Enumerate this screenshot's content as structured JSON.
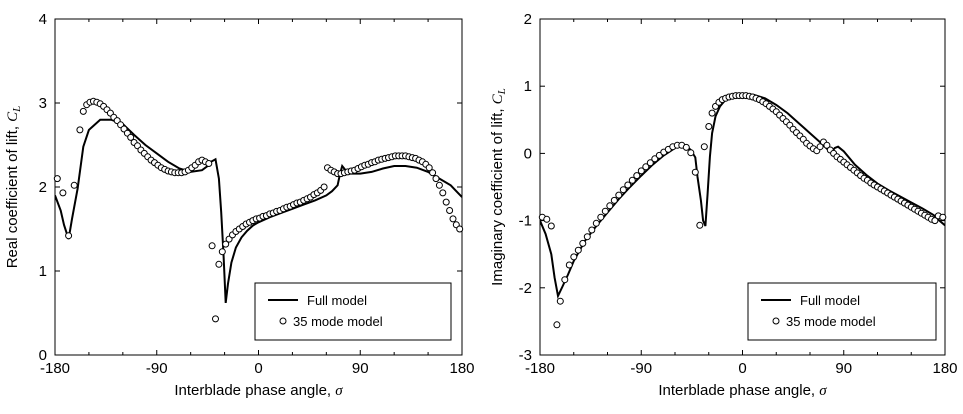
{
  "chart_data": [
    {
      "type": "line",
      "panel": "left",
      "xlabel": "Interblade phase angle,",
      "xlabel_symbol": "σ",
      "ylabel": "Real coefficient of lift,",
      "ylabel_symbol": "C",
      "ylabel_sub": "L",
      "xlim": [
        -180,
        180
      ],
      "ylim": [
        0,
        4
      ],
      "xticks": [
        "-180",
        "-90",
        "0",
        "90",
        "180"
      ],
      "yticks": [
        "0",
        "1",
        "2",
        "3",
        "4"
      ],
      "legend_position": "lower-right",
      "series": [
        {
          "name": "Full model",
          "style": "line",
          "x": [
            -180,
            -175,
            -172,
            -168,
            -165,
            -160,
            -155,
            -150,
            -140,
            -130,
            -120,
            -110,
            -100,
            -90,
            -80,
            -70,
            -60,
            -50,
            -45,
            -42,
            -38,
            -35,
            -33,
            -31,
            -29,
            -27,
            -24,
            -20,
            -15,
            -10,
            -5,
            0,
            10,
            20,
            30,
            40,
            50,
            60,
            65,
            70,
            72,
            74,
            77,
            80,
            90,
            100,
            110,
            120,
            130,
            140,
            150,
            160,
            170,
            175,
            180
          ],
          "y": [
            1.9,
            1.72,
            1.55,
            1.38,
            1.62,
            1.98,
            2.48,
            2.68,
            2.8,
            2.8,
            2.75,
            2.62,
            2.5,
            2.4,
            2.3,
            2.22,
            2.18,
            2.2,
            2.25,
            2.3,
            2.33,
            2.1,
            1.7,
            1.2,
            0.62,
            0.85,
            1.1,
            1.28,
            1.4,
            1.48,
            1.54,
            1.58,
            1.64,
            1.69,
            1.74,
            1.79,
            1.84,
            1.9,
            1.95,
            2.02,
            2.15,
            2.25,
            2.2,
            2.16,
            2.16,
            2.18,
            2.22,
            2.25,
            2.25,
            2.23,
            2.18,
            2.1,
            2.02,
            1.95,
            1.88
          ]
        },
        {
          "name": "35 mode model",
          "style": "markers",
          "x": [
            -178,
            -173,
            -168,
            -163,
            -158,
            -155,
            -152,
            -149,
            -146,
            -143,
            -140,
            -137,
            -134,
            -131,
            -128,
            -125,
            -122,
            -119,
            -116,
            -113,
            -110,
            -107,
            -104,
            -101,
            -98,
            -95,
            -92,
            -89,
            -86,
            -83,
            -80,
            -77,
            -74,
            -71,
            -68,
            -65,
            -62,
            -59,
            -56,
            -53,
            -50,
            -47,
            -44,
            -41,
            -38,
            -35,
            -32,
            -29,
            -26,
            -23,
            -20,
            -17,
            -14,
            -11,
            -8,
            -5,
            -2,
            1,
            4,
            7,
            10,
            13,
            16,
            19,
            22,
            25,
            28,
            31,
            34,
            37,
            40,
            43,
            46,
            49,
            52,
            55,
            58,
            61,
            64,
            67,
            70,
            73,
            76,
            79,
            82,
            85,
            88,
            91,
            94,
            97,
            100,
            103,
            106,
            109,
            112,
            115,
            118,
            121,
            124,
            127,
            130,
            133,
            136,
            139,
            142,
            145,
            148,
            151,
            154,
            157,
            160,
            163,
            166,
            169,
            172,
            175,
            178
          ],
          "y": [
            2.1,
            1.93,
            1.42,
            2.02,
            2.68,
            2.9,
            2.98,
            3.01,
            3.02,
            3.01,
            2.99,
            2.96,
            2.92,
            2.88,
            2.83,
            2.79,
            2.74,
            2.69,
            2.64,
            2.59,
            2.53,
            2.49,
            2.44,
            2.4,
            2.36,
            2.32,
            2.29,
            2.26,
            2.23,
            2.21,
            2.19,
            2.18,
            2.17,
            2.17,
            2.17,
            2.18,
            2.2,
            2.23,
            2.26,
            2.3,
            2.32,
            2.3,
            2.28,
            1.3,
            0.43,
            1.08,
            1.23,
            1.32,
            1.38,
            1.43,
            1.47,
            1.5,
            1.53,
            1.56,
            1.58,
            1.6,
            1.62,
            1.63,
            1.65,
            1.66,
            1.68,
            1.69,
            1.71,
            1.72,
            1.74,
            1.76,
            1.77,
            1.79,
            1.81,
            1.82,
            1.84,
            1.86,
            1.88,
            1.91,
            1.93,
            1.96,
            2.0,
            2.23,
            2.2,
            2.18,
            2.16,
            2.16,
            2.17,
            2.18,
            2.19,
            2.2,
            2.22,
            2.24,
            2.26,
            2.27,
            2.29,
            2.3,
            2.32,
            2.33,
            2.34,
            2.35,
            2.36,
            2.37,
            2.37,
            2.37,
            2.37,
            2.36,
            2.35,
            2.34,
            2.32,
            2.3,
            2.27,
            2.23,
            2.17,
            2.1,
            2.02,
            1.93,
            1.82,
            1.72,
            1.62,
            1.55,
            1.5
          ]
        }
      ]
    },
    {
      "type": "line",
      "panel": "right",
      "xlabel": "Interblade phase angle,",
      "xlabel_symbol": "σ",
      "ylabel": "Imaginary coefficient of lift,",
      "ylabel_symbol": "C",
      "ylabel_sub": "L",
      "xlim": [
        -180,
        180
      ],
      "ylim": [
        -3,
        2
      ],
      "xticks": [
        "-180",
        "-90",
        "0",
        "90",
        "180"
      ],
      "yticks": [
        "-3",
        "-2",
        "-1",
        "0",
        "1",
        "2"
      ],
      "legend_position": "lower-right",
      "series": [
        {
          "name": "Full model",
          "style": "line",
          "x": [
            -180,
            -175,
            -170,
            -167,
            -164,
            -160,
            -155,
            -150,
            -140,
            -130,
            -120,
            -110,
            -100,
            -90,
            -80,
            -70,
            -60,
            -55,
            -50,
            -46,
            -42,
            -40,
            -37,
            -35,
            -33,
            -31,
            -29,
            -27,
            -24,
            -20,
            -15,
            -10,
            -5,
            0,
            10,
            20,
            30,
            40,
            50,
            60,
            70,
            75,
            78,
            80,
            82,
            85,
            90,
            100,
            110,
            120,
            130,
            140,
            150,
            160,
            170,
            175,
            180
          ],
          "y": [
            -1.0,
            -1.2,
            -1.5,
            -1.85,
            -2.12,
            -1.98,
            -1.8,
            -1.6,
            -1.3,
            -1.08,
            -0.88,
            -0.68,
            -0.5,
            -0.33,
            -0.17,
            -0.03,
            0.08,
            0.12,
            0.11,
            0.05,
            -0.06,
            -0.35,
            -0.7,
            -1.0,
            -1.08,
            -0.6,
            -0.05,
            0.3,
            0.55,
            0.7,
            0.8,
            0.86,
            0.88,
            0.89,
            0.87,
            0.82,
            0.72,
            0.6,
            0.45,
            0.3,
            0.15,
            0.07,
            0.02,
            0.04,
            0.08,
            0.1,
            0.03,
            -0.17,
            -0.32,
            -0.45,
            -0.55,
            -0.64,
            -0.73,
            -0.82,
            -0.92,
            -1.0,
            -1.07
          ]
        },
        {
          "name": "35 mode model",
          "style": "markers",
          "x": [
            -178,
            -174,
            -170,
            -165,
            -162,
            -158,
            -154,
            -150,
            -146,
            -142,
            -138,
            -134,
            -130,
            -126,
            -122,
            -118,
            -114,
            -110,
            -106,
            -102,
            -98,
            -94,
            -90,
            -86,
            -82,
            -78,
            -74,
            -70,
            -66,
            -62,
            -58,
            -54,
            -50,
            -46,
            -42,
            -38,
            -34,
            -30,
            -27,
            -24,
            -21,
            -18,
            -15,
            -12,
            -9,
            -6,
            -3,
            0,
            3,
            6,
            9,
            12,
            15,
            18,
            21,
            24,
            27,
            30,
            33,
            36,
            39,
            42,
            45,
            48,
            51,
            54,
            57,
            60,
            63,
            66,
            69,
            72,
            75,
            78,
            81,
            84,
            87,
            90,
            93,
            96,
            99,
            102,
            105,
            108,
            111,
            114,
            117,
            120,
            123,
            126,
            129,
            132,
            135,
            138,
            141,
            144,
            147,
            150,
            153,
            156,
            159,
            162,
            165,
            168,
            171,
            174,
            178
          ],
          "y": [
            -0.95,
            -0.98,
            -1.08,
            -2.55,
            -2.2,
            -1.88,
            -1.66,
            -1.54,
            -1.44,
            -1.34,
            -1.24,
            -1.14,
            -1.04,
            -0.95,
            -0.86,
            -0.78,
            -0.7,
            -0.62,
            -0.54,
            -0.47,
            -0.4,
            -0.33,
            -0.26,
            -0.2,
            -0.14,
            -0.08,
            -0.03,
            0.02,
            0.06,
            0.1,
            0.12,
            0.12,
            0.09,
            0.01,
            -0.28,
            -1.07,
            0.1,
            0.4,
            0.6,
            0.7,
            0.76,
            0.8,
            0.82,
            0.84,
            0.85,
            0.86,
            0.86,
            0.86,
            0.86,
            0.85,
            0.84,
            0.82,
            0.8,
            0.77,
            0.74,
            0.7,
            0.66,
            0.62,
            0.57,
            0.52,
            0.47,
            0.42,
            0.36,
            0.31,
            0.26,
            0.21,
            0.15,
            0.11,
            0.07,
            0.04,
            0.1,
            0.17,
            0.12,
            0.05,
            0.0,
            -0.05,
            -0.09,
            -0.13,
            -0.17,
            -0.21,
            -0.25,
            -0.29,
            -0.33,
            -0.37,
            -0.4,
            -0.44,
            -0.47,
            -0.5,
            -0.53,
            -0.56,
            -0.59,
            -0.62,
            -0.65,
            -0.68,
            -0.71,
            -0.74,
            -0.77,
            -0.8,
            -0.83,
            -0.86,
            -0.89,
            -0.92,
            -0.95,
            -0.98,
            -1.0,
            -0.93,
            -0.95
          ]
        }
      ]
    }
  ]
}
